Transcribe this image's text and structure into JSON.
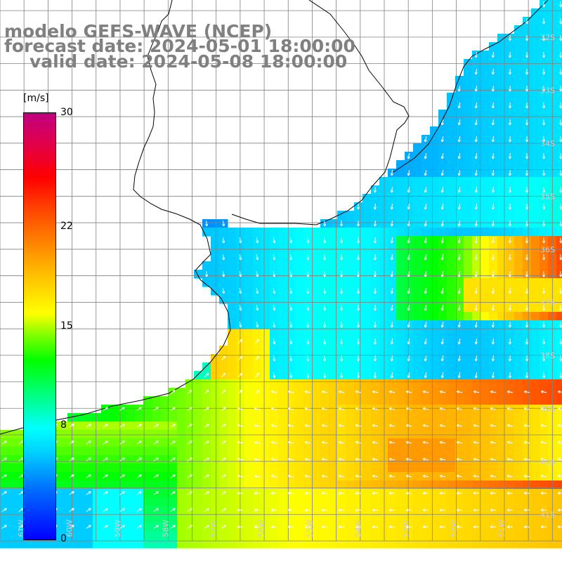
{
  "title": {
    "line1": "modelo GEFS-WAVE (NCEP)",
    "line2": "forecast date: 2024-05-01 18:00:00",
    "line3": "valid date: 2024-05-08 18:00:00"
  },
  "colorbar": {
    "unit": "[m/s]",
    "ticks": [
      {
        "label": "30",
        "value": 30
      },
      {
        "label": "22",
        "value": 22
      },
      {
        "label": "15",
        "value": 15
      },
      {
        "label": "8",
        "value": 8
      },
      {
        "label": "0",
        "value": 0
      }
    ],
    "min": 0,
    "max": 30
  },
  "map": {
    "lon_range": [
      -61.5,
      -49.8
    ],
    "lat_range": [
      -41.5,
      -31.3
    ],
    "lat_labels": [
      {
        "label": "32S",
        "lat": -32
      },
      {
        "label": "33S",
        "lat": -33
      },
      {
        "label": "34S",
        "lat": -34
      },
      {
        "label": "35S",
        "lat": -35
      },
      {
        "label": "36S",
        "lat": -36
      },
      {
        "label": "37S",
        "lat": -37
      },
      {
        "label": "38S",
        "lat": -38
      },
      {
        "label": "39S",
        "lat": -39
      },
      {
        "label": "40S",
        "lat": -40
      },
      {
        "label": "41S",
        "lat": -41
      }
    ],
    "lon_labels": [
      {
        "label": "61W",
        "lon": -61
      },
      {
        "label": "60W",
        "lon": -60
      },
      {
        "label": "59W",
        "lon": -59
      },
      {
        "label": "58W",
        "lon": -58
      },
      {
        "label": "57W",
        "lon": -57
      },
      {
        "label": "56W",
        "lon": -56
      },
      {
        "label": "55W",
        "lon": -55
      },
      {
        "label": "54W",
        "lon": -54
      },
      {
        "label": "53W",
        "lon": -53
      },
      {
        "label": "52W",
        "lon": -52
      },
      {
        "label": "51W",
        "lon": -51
      }
    ],
    "label_color": "#d0d0d0",
    "grid_color": "#808080",
    "coast_color": "#000000",
    "arrow_color": "#ffffff"
  }
}
